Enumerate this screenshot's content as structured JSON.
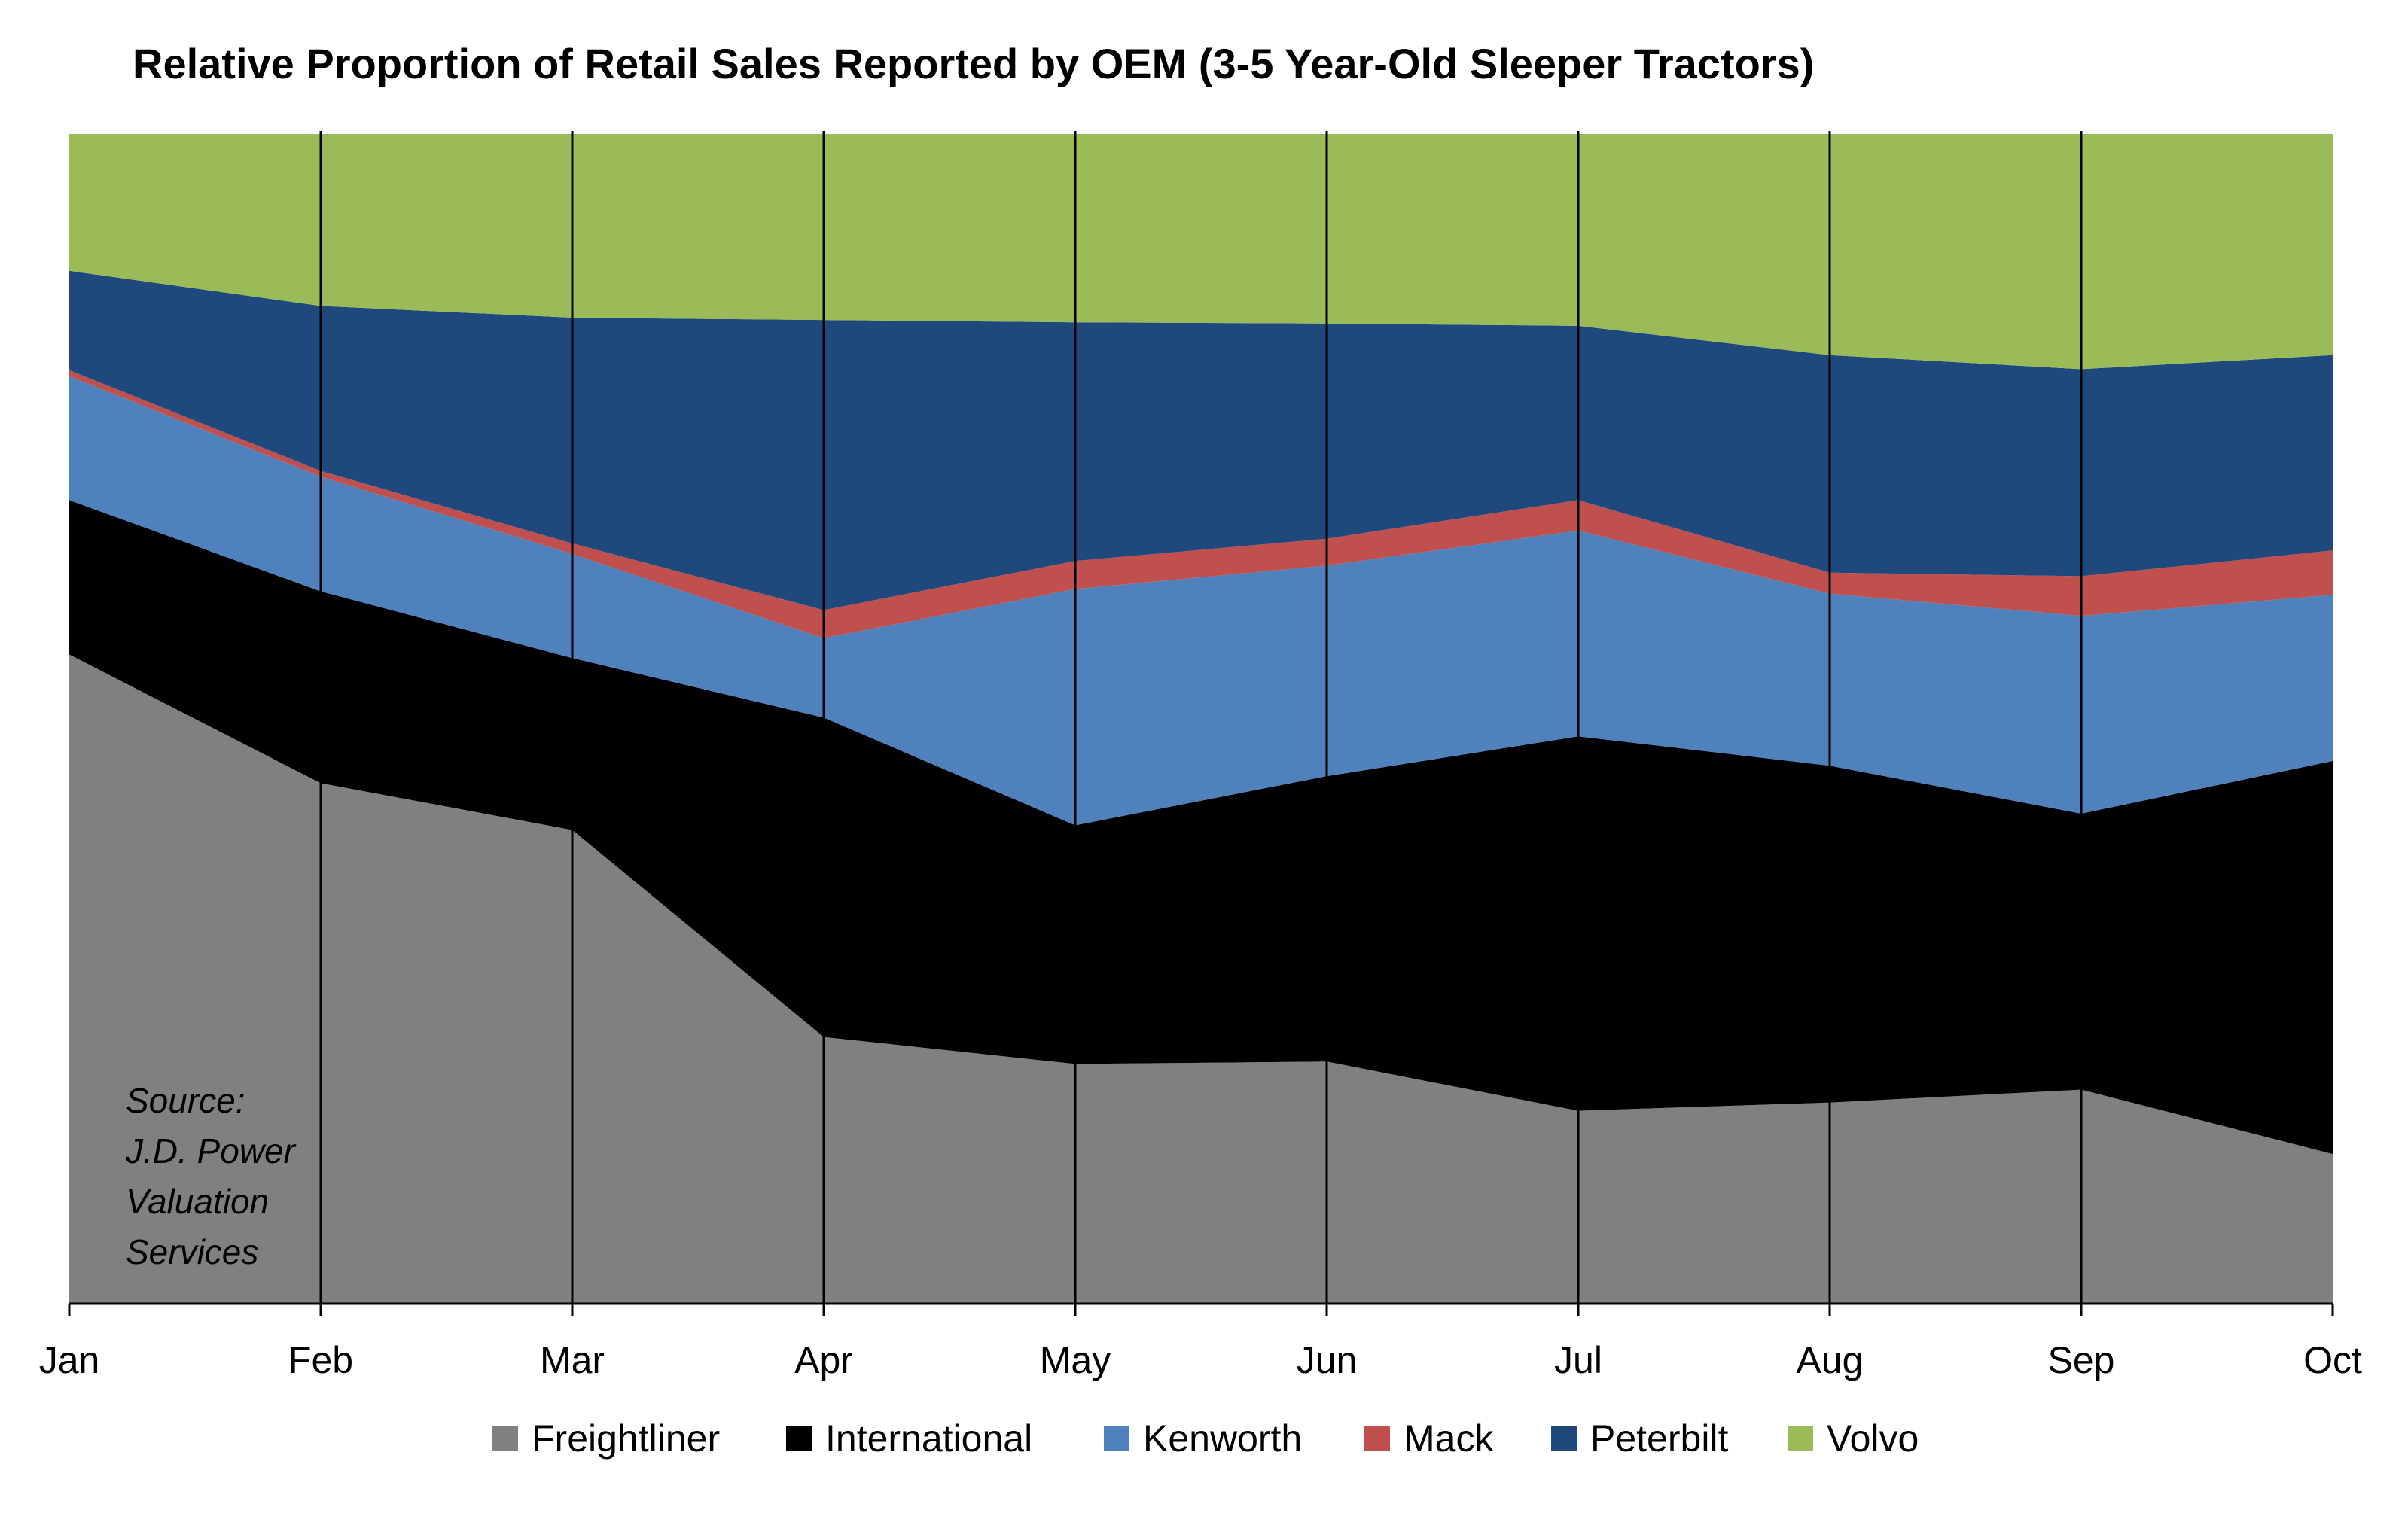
{
  "chart_data": {
    "type": "area",
    "stacked": "percent",
    "title": "Relative Proportion of Retail Sales Reported by OEM (3-5 Year-Old Sleeper Tractors)",
    "categories": [
      "Jan",
      "Feb",
      "Mar",
      "Apr",
      "May",
      "Jun",
      "Jul",
      "Aug",
      "Sep",
      "Oct"
    ],
    "ylim": [
      0,
      100
    ],
    "units": "percent of retail sales",
    "legend_position": "bottom",
    "grid": "vertical lines at each month",
    "annotation": [
      "Source:",
      "J.D. Power",
      "Valuation",
      "Services"
    ],
    "series": [
      {
        "name": "Freightliner",
        "color": "#808080",
        "values": [
          55.5,
          44.5,
          40.5,
          22.8,
          20.5,
          20.7,
          16.5,
          17.2,
          18.3,
          12.8
        ]
      },
      {
        "name": "International",
        "color": "#000000",
        "values": [
          13.2,
          16.4,
          14.7,
          27.3,
          20.4,
          24.4,
          32.0,
          28.8,
          23.6,
          33.6
        ]
      },
      {
        "name": "Kenworth",
        "color": "#4f81bd",
        "values": [
          10.6,
          9.8,
          8.9,
          6.8,
          20.2,
          18.0,
          17.6,
          14.7,
          16.9,
          14.2
        ]
      },
      {
        "name": "Mack",
        "color": "#c0504d",
        "values": [
          0.5,
          0.5,
          0.9,
          2.4,
          2.4,
          2.3,
          2.6,
          1.8,
          3.4,
          3.8
        ]
      },
      {
        "name": "Peterbilt",
        "color": "#1f497d",
        "values": [
          8.5,
          14.1,
          19.3,
          24.8,
          20.4,
          18.4,
          14.9,
          18.6,
          17.7,
          16.7
        ]
      },
      {
        "name": "Volvo",
        "color": "#9bbb59",
        "values": [
          11.7,
          14.7,
          15.7,
          15.9,
          16.1,
          16.2,
          16.4,
          18.9,
          20.1,
          18.9
        ]
      }
    ]
  }
}
